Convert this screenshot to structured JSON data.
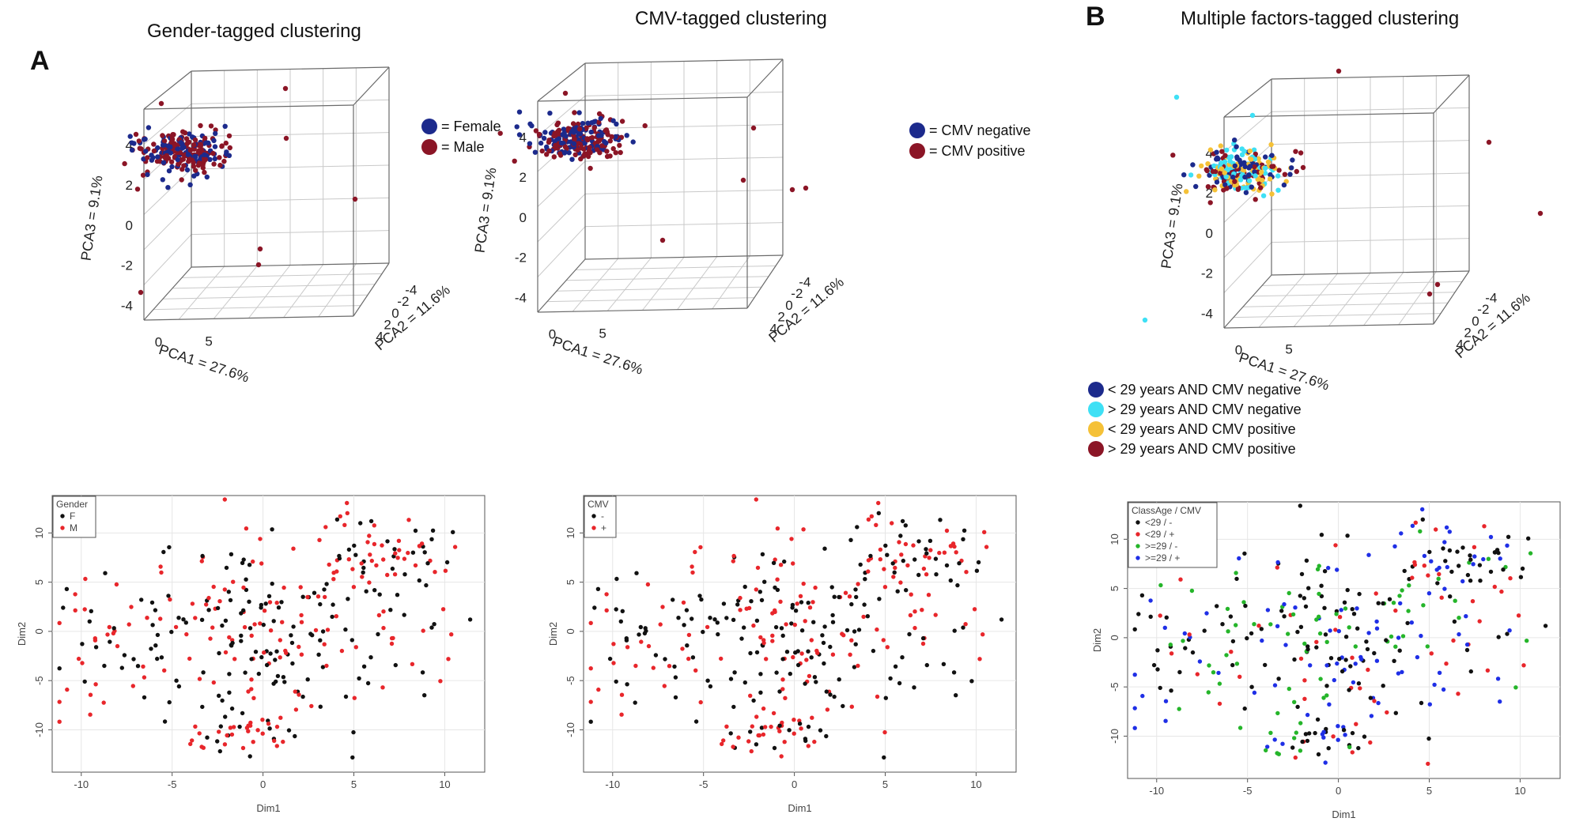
{
  "figure": {
    "label_a": "A",
    "label_b": "B",
    "titles": [
      "Gender-tagged clustering",
      "CMV-tagged clustering",
      "Multiple factors-tagged clustering"
    ]
  },
  "chart_data": [
    {
      "type": "scatter",
      "dimension": "3d",
      "title": "Gender-tagged clustering",
      "xlabel": "PCA1 = 27.6%",
      "ylabel": "PCA2 = 11.6%",
      "zlabel": "PCA3 = 9.1%",
      "xticks": [
        "0",
        "5"
      ],
      "yticks": [
        "-4",
        "-2",
        "0",
        "2",
        "4"
      ],
      "zticks": [
        "4",
        "2",
        "0",
        "-2",
        "-4"
      ],
      "legend": [
        {
          "label": "= Female",
          "color": "#1c2a8c"
        },
        {
          "label": "= Male",
          "color": "#8b1526"
        }
      ],
      "series": [
        {
          "name": "Female",
          "color": "#1c2a8c"
        },
        {
          "name": "Male",
          "color": "#8b1526"
        }
      ]
    },
    {
      "type": "scatter",
      "dimension": "3d",
      "title": "CMV-tagged clustering",
      "xlabel": "PCA1 = 27.6%",
      "ylabel": "PCA2 = 11.6%",
      "zlabel": "PCA3 = 9.1%",
      "xticks": [
        "0",
        "5"
      ],
      "yticks": [
        "-4",
        "-2",
        "0",
        "2",
        "4"
      ],
      "zticks": [
        "4",
        "2",
        "0",
        "-2",
        "-4"
      ],
      "legend": [
        {
          "label": "= CMV negative",
          "color": "#1c2a8c"
        },
        {
          "label": "= CMV positive",
          "color": "#8b1526"
        }
      ],
      "series": [
        {
          "name": "CMV negative",
          "color": "#1c2a8c"
        },
        {
          "name": "CMV positive",
          "color": "#8b1526"
        }
      ]
    },
    {
      "type": "scatter",
      "dimension": "3d",
      "title": "Multiple factors-tagged clustering",
      "xlabel": "PCA1 = 27.6%",
      "ylabel": "PCA2 = 11.6%",
      "zlabel": "PCA3 = 9.1%",
      "xticks": [
        "0",
        "5"
      ],
      "yticks": [
        "-4",
        "-2",
        "0",
        "2",
        "4"
      ],
      "zticks": [
        "4",
        "2",
        "0",
        "-2",
        "-4"
      ],
      "legend": [
        {
          "label": "< 29 years AND CMV negative",
          "color": "#1c2a8c"
        },
        {
          "label": "> 29 years AND CMV negative",
          "color": "#3ee0f5"
        },
        {
          "label": "< 29 years AND CMV positive",
          "color": "#f5c137"
        },
        {
          "label": "> 29 years AND CMV positive",
          "color": "#8b1526"
        }
      ],
      "series": [
        {
          "name": "< 29 years AND CMV negative",
          "color": "#1c2a8c"
        },
        {
          "name": "> 29 years AND CMV negative",
          "color": "#3ee0f5"
        },
        {
          "name": "< 29 years AND CMV positive",
          "color": "#f5c137"
        },
        {
          "name": "> 29 years AND CMV positive",
          "color": "#8b1526"
        }
      ]
    },
    {
      "type": "scatter",
      "title": "",
      "xlabel": "Dim1",
      "ylabel": "Dim2",
      "xlim": [
        -11.6,
        12.2
      ],
      "ylim": [
        -14.3,
        13.8
      ],
      "xticks": [
        -10,
        -5,
        0,
        5,
        10
      ],
      "yticks": [
        -10,
        -5,
        0,
        5,
        10
      ],
      "grid": true,
      "legend_title": "Gender",
      "legend_position": "top-left",
      "legend": [
        {
          "label": "F",
          "color": "#111111"
        },
        {
          "label": "M",
          "color": "#e8262b"
        }
      ]
    },
    {
      "type": "scatter",
      "title": "",
      "xlabel": "Dim1",
      "ylabel": "Dim2",
      "xlim": [
        -11.6,
        12.2
      ],
      "ylim": [
        -14.3,
        13.8
      ],
      "xticks": [
        -10,
        -5,
        0,
        5,
        10
      ],
      "yticks": [
        -10,
        -5,
        0,
        5,
        10
      ],
      "grid": true,
      "legend_title": "CMV",
      "legend_position": "top-left",
      "legend": [
        {
          "label": "-",
          "color": "#111111"
        },
        {
          "label": "+",
          "color": "#e8262b"
        }
      ]
    },
    {
      "type": "scatter",
      "title": "",
      "xlabel": "Dim1",
      "ylabel": "Dim2",
      "xlim": [
        -11.6,
        12.2
      ],
      "ylim": [
        -14.3,
        13.8
      ],
      "xticks": [
        -10,
        -5,
        0,
        5,
        10
      ],
      "yticks": [
        -10,
        -5,
        0,
        5,
        10
      ],
      "grid": true,
      "legend_title": "ClassAge / CMV",
      "legend_position": "top-left",
      "legend": [
        {
          "label": "<29 / -",
          "color": "#111111"
        },
        {
          "label": "<29 / +",
          "color": "#e8262b"
        },
        {
          "label": ">=29 / -",
          "color": "#25b52a"
        },
        {
          "label": ">=29 / +",
          "color": "#1f2fe6"
        }
      ]
    }
  ]
}
